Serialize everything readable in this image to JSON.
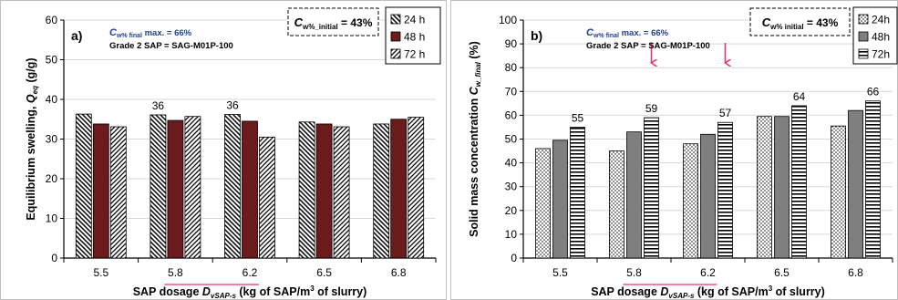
{
  "chart_data": [
    {
      "type": "bar",
      "panel_label": "a)",
      "categories": [
        "5.5",
        "5.8",
        "6.2",
        "6.5",
        "6.8"
      ],
      "series": [
        {
          "name": "24 h",
          "values": [
            36.3,
            36.1,
            36.2,
            34.3,
            33.8
          ]
        },
        {
          "name": "48 h",
          "values": [
            33.8,
            34.7,
            34.5,
            33.8,
            35.0
          ]
        },
        {
          "name": "72 h",
          "values": [
            33.1,
            35.7,
            30.5,
            33.1,
            35.5
          ]
        }
      ],
      "data_labels": [
        {
          "category": "5.8",
          "series": "24 h",
          "text": "36"
        },
        {
          "category": "6.2",
          "series": "24 h",
          "text": "36"
        }
      ],
      "ylim": [
        0,
        60
      ],
      "yticks": [
        "0",
        "10",
        "20",
        "30",
        "40",
        "50",
        "60"
      ],
      "ylabel": "Equilibrium swelling, Q_eq (g/g)",
      "ylabel_main": "Equilibrium  swelling,  ",
      "ylabel_sym": "Q",
      "ylabel_sub": "eq",
      "ylabel_unit": " (g/g)",
      "xlabel": "SAP dosage D_vSAP-s (kg of SAP/m3 of slurry)",
      "xlabel_pre": "SAP dosage ",
      "xlabel_sym": "D",
      "xlabel_sub": "vSAP-s",
      "xlabel_mid": " (kg of SAP/m",
      "xlabel_sup": "3",
      "xlabel_post": " of slurry)",
      "annotation_line1_sym": "C",
      "annotation_line1_sub": "w% final",
      "annotation_line1_rest": " max. = 66%",
      "annotation_line2": "Grade 2 SAP = SAG-M01P-100",
      "box_sym": "C",
      "box_sub": "w%_initial",
      "box_rest": " = 43%",
      "grid": true,
      "legend": "top-right",
      "colors": {
        "48 h": "#6b1b1b",
        "hatch": "#000000"
      }
    },
    {
      "type": "bar",
      "panel_label": "b)",
      "categories": [
        "5.5",
        "5.8",
        "6.2",
        "6.5",
        "6.8"
      ],
      "series": [
        {
          "name": "24h",
          "values": [
            46,
            45,
            48,
            59.5,
            55.5
          ]
        },
        {
          "name": "48h",
          "values": [
            49.5,
            53,
            52,
            59.5,
            62
          ]
        },
        {
          "name": "72h",
          "values": [
            55,
            59,
            57,
            64,
            66
          ]
        }
      ],
      "data_labels": [
        {
          "category": "5.5",
          "series": "72h",
          "text": "55"
        },
        {
          "category": "5.8",
          "series": "72h",
          "text": "59"
        },
        {
          "category": "6.2",
          "series": "72h",
          "text": "57"
        },
        {
          "category": "6.5",
          "series": "72h",
          "text": "64"
        },
        {
          "category": "6.8",
          "series": "72h",
          "text": "66"
        }
      ],
      "arrows_at": [
        "5.8",
        "6.2"
      ],
      "ylim": [
        0,
        100
      ],
      "yticks": [
        "0",
        "10",
        "20",
        "30",
        "40",
        "50",
        "60",
        "70",
        "80",
        "90",
        "100"
      ],
      "ylabel": "Solid mass concentration C_w_final (%)",
      "ylabel_main": "Solid mass concentration ",
      "ylabel_sym": "C",
      "ylabel_sub": "w_final",
      "ylabel_unit": " (%)",
      "xlabel": "SAP dosage D_vSAP-s (kg of SAP/m3 of slurry)",
      "xlabel_pre": "SAP dosage ",
      "xlabel_sym": "D",
      "xlabel_sub": "vSAP-s",
      "xlabel_mid": " (kg of SAP/m",
      "xlabel_sup": "3",
      "xlabel_post": " of slurry)",
      "annotation_line1_sym": "C",
      "annotation_line1_sub": "w% final",
      "annotation_line1_rest": " max. = 66%",
      "annotation_line2": "Grade 2 SAP = SAG-M01P-100",
      "box_sym": "C",
      "box_sub": "w% initial",
      "box_rest": " = 43%",
      "grid": true,
      "legend": "top-right",
      "colors": {
        "48h": "#7f7f7f",
        "arrow": "#e8336d"
      }
    }
  ]
}
